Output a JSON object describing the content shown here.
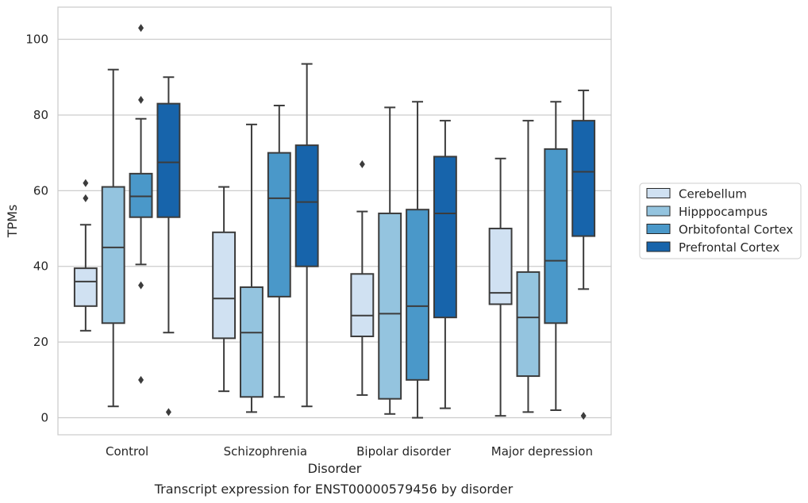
{
  "chart_data": {
    "type": "box",
    "title": "",
    "caption": "Transcript expression for ENST00000579456 by disorder",
    "xlabel": "Disorder",
    "ylabel": "TPMs",
    "ylim": [
      -4.5,
      108.5
    ],
    "yticks": [
      0,
      20,
      40,
      60,
      80,
      100
    ],
    "grid": "horizontal",
    "legend_position": "right",
    "categories": [
      "Control",
      "Schizophrenia",
      "Bipolar disorder",
      "Major depression"
    ],
    "series": [
      {
        "name": "Cerebellum",
        "color": "#d0e1f2",
        "boxes": [
          {
            "whislo": 23,
            "q1": 29.5,
            "med": 36,
            "q3": 39.5,
            "whishi": 51,
            "fliers": [
              58,
              62
            ]
          },
          {
            "whislo": 7,
            "q1": 21,
            "med": 31.5,
            "q3": 49,
            "whishi": 61,
            "fliers": []
          },
          {
            "whislo": 6,
            "q1": 21.5,
            "med": 27,
            "q3": 38,
            "whishi": 54.5,
            "fliers": [
              67
            ]
          },
          {
            "whislo": 0.5,
            "q1": 30,
            "med": 33,
            "q3": 50,
            "whishi": 68.5,
            "fliers": []
          }
        ]
      },
      {
        "name": "Hipppocampus",
        "color": "#94c4df",
        "boxes": [
          {
            "whislo": 3,
            "q1": 25,
            "med": 45,
            "q3": 61,
            "whishi": 92,
            "fliers": []
          },
          {
            "whislo": 1.5,
            "q1": 5.5,
            "med": 22.5,
            "q3": 34.5,
            "whishi": 77.5,
            "fliers": []
          },
          {
            "whislo": 1,
            "q1": 5,
            "med": 27.5,
            "q3": 54,
            "whishi": 82,
            "fliers": []
          },
          {
            "whislo": 1.5,
            "q1": 11,
            "med": 26.5,
            "q3": 38.5,
            "whishi": 78.5,
            "fliers": []
          }
        ]
      },
      {
        "name": "Orbitofontal Cortex",
        "color": "#4a98c9",
        "boxes": [
          {
            "whislo": 40.5,
            "q1": 53,
            "med": 58.5,
            "q3": 64.5,
            "whishi": 79,
            "fliers": [
              10,
              35,
              84,
              103
            ]
          },
          {
            "whislo": 5.5,
            "q1": 32,
            "med": 58,
            "q3": 70,
            "whishi": 82.5,
            "fliers": []
          },
          {
            "whislo": 0,
            "q1": 10,
            "med": 29.5,
            "q3": 55,
            "whishi": 83.5,
            "fliers": []
          },
          {
            "whislo": 2,
            "q1": 25,
            "med": 41.5,
            "q3": 71,
            "whishi": 83.5,
            "fliers": []
          }
        ]
      },
      {
        "name": "Prefrontal Cortex",
        "color": "#1764ab",
        "boxes": [
          {
            "whislo": 22.5,
            "q1": 53,
            "med": 67.5,
            "q3": 83,
            "whishi": 90,
            "fliers": [
              1.5
            ]
          },
          {
            "whislo": 3,
            "q1": 40,
            "med": 57,
            "q3": 72,
            "whishi": 93.5,
            "fliers": []
          },
          {
            "whislo": 2.5,
            "q1": 26.5,
            "med": 54,
            "q3": 69,
            "whishi": 78.5,
            "fliers": []
          },
          {
            "whislo": 34,
            "q1": 48,
            "med": 65,
            "q3": 78.5,
            "whishi": 86.5,
            "fliers": [
              0.5
            ]
          }
        ]
      }
    ]
  }
}
